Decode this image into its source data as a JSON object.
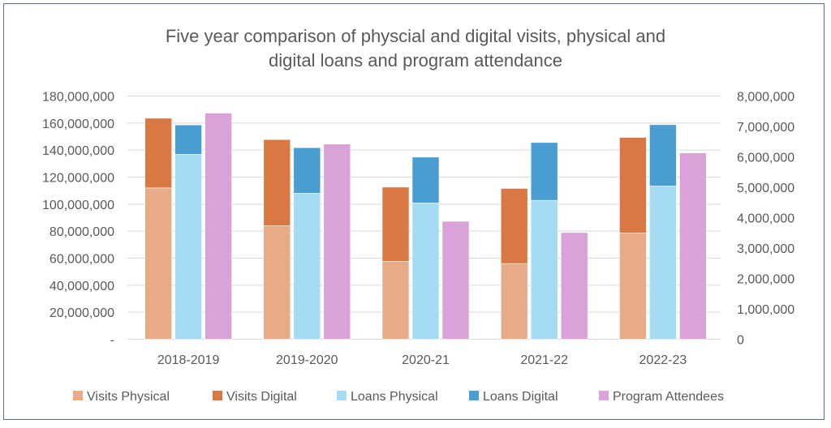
{
  "chart_data": {
    "type": "bar",
    "title": "Five year comparison of physcial and digital visits, physical and digital loans and program attendance",
    "title_lines": [
      "Five year comparison of physcial and digital visits, physical and",
      "digital loans and program attendance"
    ],
    "categories": [
      "2018-2019",
      "2019-2020",
      "2020-21",
      "2021-22",
      "2022-23"
    ],
    "series": [
      {
        "name": "Visits Physical",
        "stack": "visits",
        "axis": "left",
        "color": "#e8ab88",
        "values": [
          112000000,
          84000000,
          57600000,
          56000000,
          78600000
        ]
      },
      {
        "name": "Visits Digital",
        "stack": "visits",
        "axis": "left",
        "color": "#d97842",
        "values": [
          51600000,
          63800000,
          55000000,
          55600000,
          70800000
        ]
      },
      {
        "name": "Loans Physical",
        "stack": "loans",
        "axis": "left",
        "color": "#a6dbf4",
        "values": [
          136800000,
          108000000,
          100800000,
          102800000,
          113400000
        ]
      },
      {
        "name": "Loans Digital",
        "stack": "loans",
        "axis": "left",
        "color": "#4a9dd1",
        "values": [
          21800000,
          33800000,
          34000000,
          42800000,
          45400000
        ]
      },
      {
        "name": "Program Attendees",
        "stack": "program",
        "axis": "right",
        "color": "#dba2da",
        "values": [
          7440000,
          6420000,
          3880000,
          3510000,
          6130000
        ]
      }
    ],
    "ylim": [
      0,
      180000000
    ],
    "y2lim": [
      0,
      8000000
    ],
    "yticks": [
      "-",
      "20,000,000",
      "40,000,000",
      "60,000,000",
      "80,000,000",
      "100,000,000",
      "120,000,000",
      "140,000,000",
      "160,000,000",
      "180,000,000"
    ],
    "y2ticks": [
      "0",
      "1,000,000",
      "2,000,000",
      "3,000,000",
      "4,000,000",
      "5,000,000",
      "6,000,000",
      "7,000,000",
      "8,000,000"
    ],
    "grid": true,
    "legend_position": "bottom"
  }
}
